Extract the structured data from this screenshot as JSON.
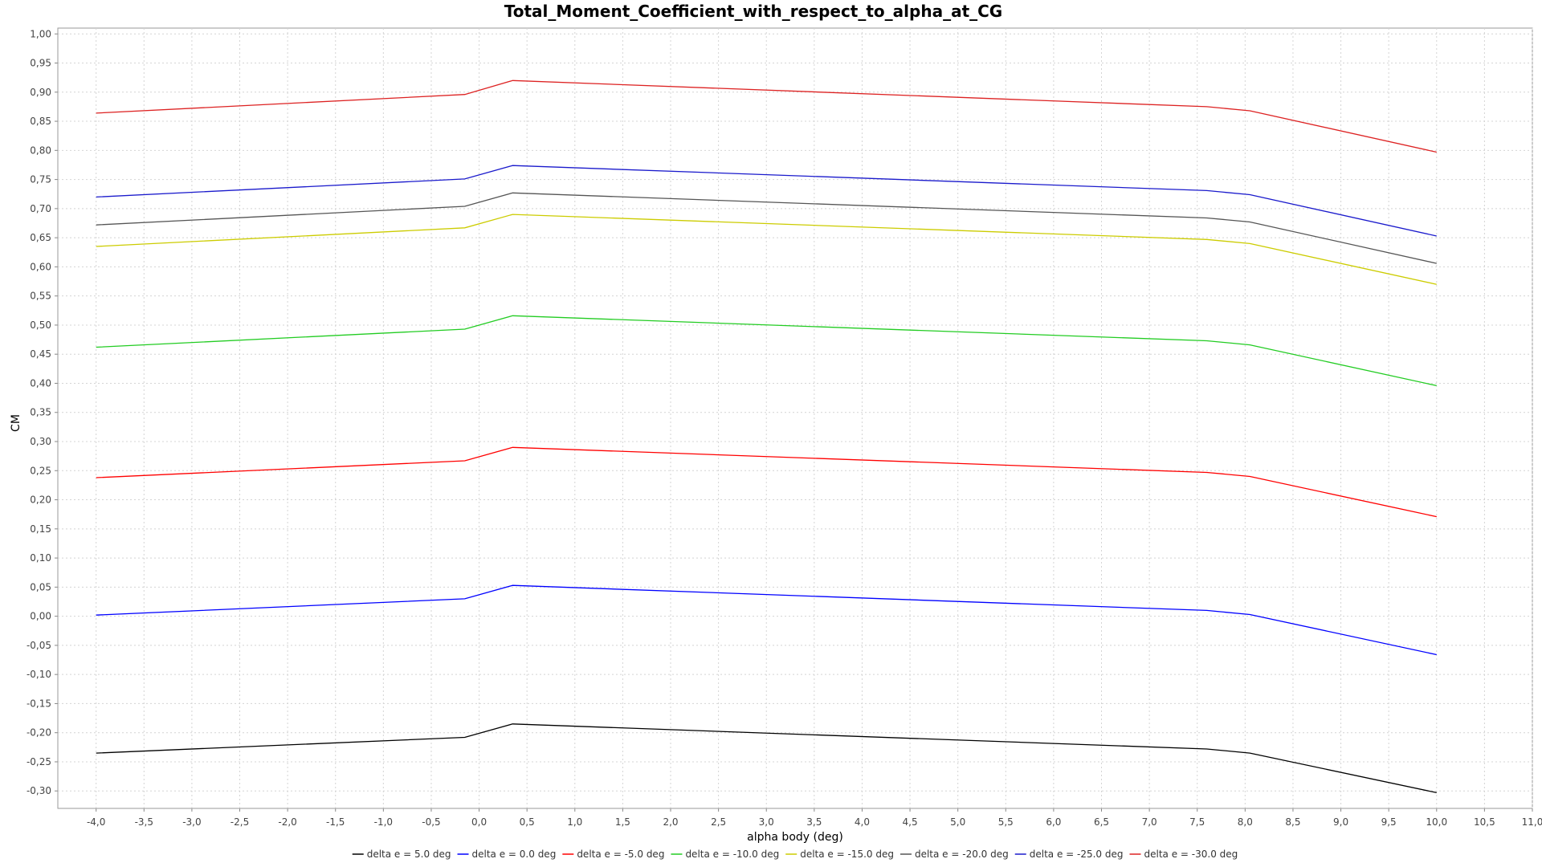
{
  "chart_data": {
    "type": "line",
    "title": "Total_Moment_Coefficient_with_respect_to_alpha_at_CG",
    "xlabel": "alpha body (deg)",
    "ylabel": "CM",
    "xlim": [
      -4.4,
      11.0
    ],
    "ylim": [
      -0.33,
      1.01
    ],
    "xticks": [
      -4.0,
      -3.5,
      -3.0,
      -2.5,
      -2.0,
      -1.5,
      -1.0,
      -0.5,
      0.0,
      0.5,
      1.0,
      1.5,
      2.0,
      2.5,
      3.0,
      3.5,
      4.0,
      4.5,
      5.0,
      5.5,
      6.0,
      6.5,
      7.0,
      7.5,
      8.0,
      8.5,
      9.0,
      9.5,
      10.0,
      10.5,
      11.0
    ],
    "xtick_labels": [
      "-4,0",
      "-3,5",
      "-3,0",
      "-2,5",
      "-2,0",
      "-1,5",
      "-1,0",
      "-0,5",
      "0,0",
      "0,5",
      "1,0",
      "1,5",
      "2,0",
      "2,5",
      "3,0",
      "3,5",
      "4,0",
      "4,5",
      "5,0",
      "5,5",
      "6,0",
      "6,5",
      "7,0",
      "7,5",
      "8,0",
      "8,5",
      "9,0",
      "9,5",
      "10,0",
      "10,5",
      "11,0"
    ],
    "yticks": [
      -0.3,
      -0.25,
      -0.2,
      -0.15,
      -0.1,
      -0.05,
      0.0,
      0.05,
      0.1,
      0.15,
      0.2,
      0.25,
      0.3,
      0.35,
      0.4,
      0.45,
      0.5,
      0.55,
      0.6,
      0.65,
      0.7,
      0.75,
      0.8,
      0.85,
      0.9,
      0.95,
      1.0
    ],
    "ytick_labels": [
      "-0,30",
      "-0,25",
      "-0,20",
      "-0,15",
      "-0,10",
      "-0,05",
      "0,00",
      "0,05",
      "0,10",
      "0,15",
      "0,20",
      "0,25",
      "0,30",
      "0,35",
      "0,40",
      "0,45",
      "0,50",
      "0,55",
      "0,60",
      "0,65",
      "0,70",
      "0,75",
      "0,80",
      "0,85",
      "0,90",
      "0,95",
      "1,00"
    ],
    "grid": true,
    "legend_position": "bottom",
    "x": [
      -4.0,
      -0.15,
      0.35,
      7.6,
      8.05,
      10.0
    ],
    "series": [
      {
        "name": "delta e = 5.0 deg",
        "color": "#000000",
        "values": [
          -0.235,
          -0.208,
          -0.185,
          -0.228,
          -0.235,
          -0.303
        ]
      },
      {
        "name": "delta e = 0.0 deg",
        "color": "#0000ff",
        "values": [
          0.002,
          0.03,
          0.053,
          0.01,
          0.003,
          -0.066
        ]
      },
      {
        "name": "delta e = -5.0 deg",
        "color": "#ff0000",
        "values": [
          0.238,
          0.267,
          0.29,
          0.247,
          0.24,
          0.171
        ]
      },
      {
        "name": "delta e = -10.0 deg",
        "color": "#22cc22",
        "values": [
          0.462,
          0.493,
          0.516,
          0.473,
          0.466,
          0.396
        ]
      },
      {
        "name": "delta e = -15.0 deg",
        "color": "#cccc00",
        "values": [
          0.635,
          0.667,
          0.69,
          0.647,
          0.64,
          0.57
        ]
      },
      {
        "name": "delta e = -20.0 deg",
        "color": "#555555",
        "values": [
          0.672,
          0.704,
          0.727,
          0.684,
          0.677,
          0.606
        ]
      },
      {
        "name": "delta e = -25.0 deg",
        "color": "#1a1acc",
        "values": [
          0.72,
          0.751,
          0.774,
          0.731,
          0.724,
          0.653
        ]
      },
      {
        "name": "delta e = -30.0 deg",
        "color": "#dd2222",
        "values": [
          0.864,
          0.896,
          0.92,
          0.875,
          0.868,
          0.797
        ]
      }
    ]
  }
}
